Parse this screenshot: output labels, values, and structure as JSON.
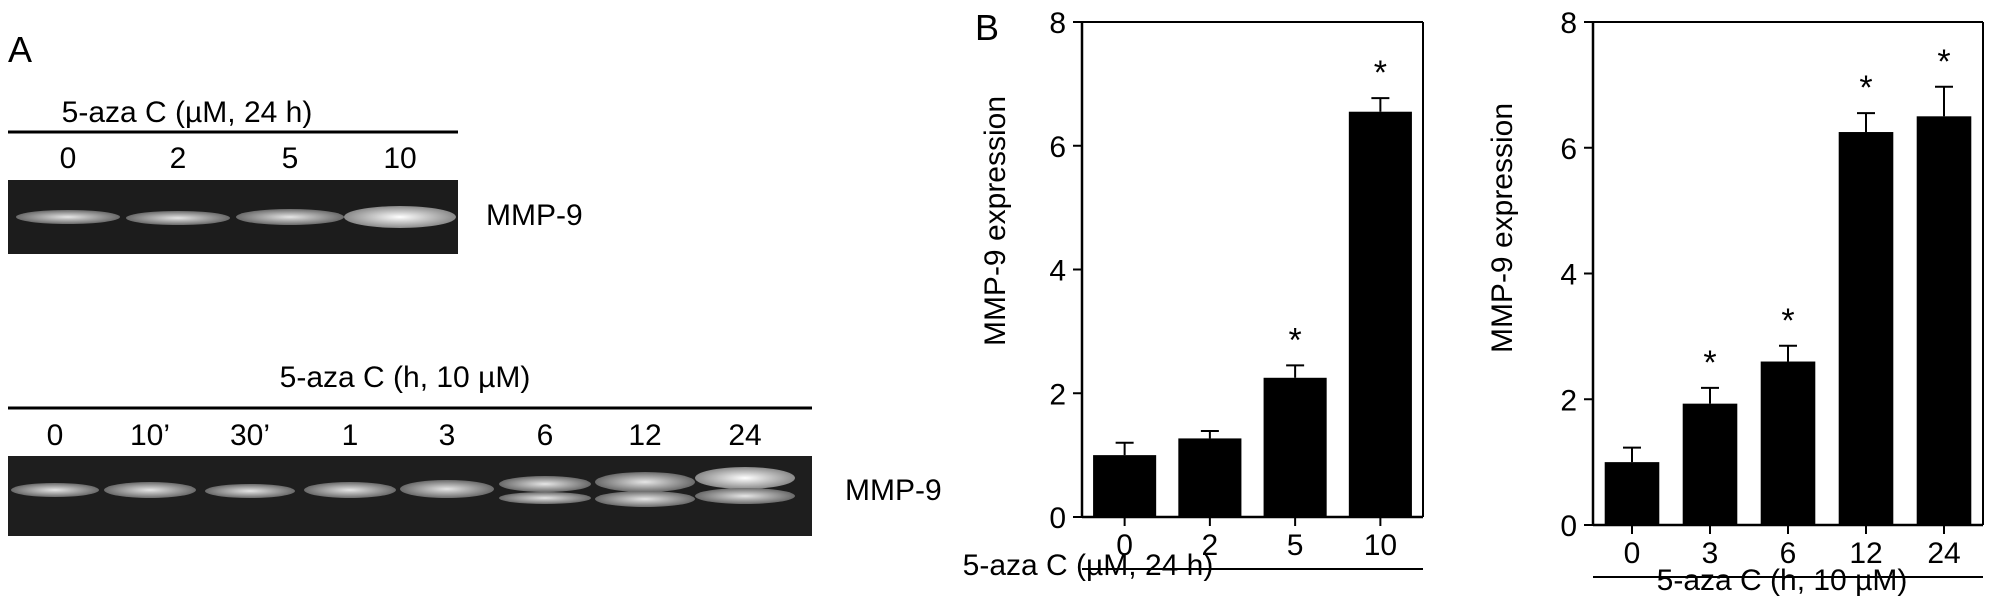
{
  "panel_a": {
    "label": "A",
    "blot1": {
      "title": "5-aza C  (µM, 24 h)",
      "lanes": [
        "0",
        "2",
        "5",
        "10"
      ],
      "marker": "MMP-9"
    },
    "blot2": {
      "title": "5-aza C  (h, 10 µM)",
      "lanes": [
        "0",
        "10’",
        "30’",
        "1",
        "3",
        "6",
        "12",
        "24"
      ],
      "marker": "MMP-9"
    }
  },
  "panel_b": {
    "label": "B"
  },
  "chart_data": [
    {
      "type": "bar",
      "categories": [
        "0",
        "2",
        "5",
        "10"
      ],
      "values": [
        1.0,
        1.27,
        2.25,
        6.55
      ],
      "errors": [
        0.2,
        0.12,
        0.2,
        0.22
      ],
      "significance": [
        "",
        "",
        "*",
        "*"
      ],
      "ylabel": "MMP-9 expression",
      "xlabel": "5-aza C (µM, 24 h)",
      "ylim": [
        0,
        8
      ],
      "yticks": [
        "0",
        "2",
        "4",
        "6",
        "8"
      ],
      "bar_color": "#000000"
    },
    {
      "type": "bar",
      "categories": [
        "0",
        "3",
        "6",
        "12",
        "24"
      ],
      "values": [
        1.0,
        1.93,
        2.6,
        6.25,
        6.5
      ],
      "errors": [
        0.23,
        0.25,
        0.25,
        0.3,
        0.47
      ],
      "significance": [
        "",
        "*",
        "*",
        "*",
        "*"
      ],
      "ylabel": "MMP-9 expression",
      "xlabel": "5-aza C  (h, 10 µM)",
      "ylim": [
        0,
        8
      ],
      "yticks": [
        "0",
        "2",
        "4",
        "6",
        "8"
      ],
      "bar_color": "#000000"
    }
  ]
}
